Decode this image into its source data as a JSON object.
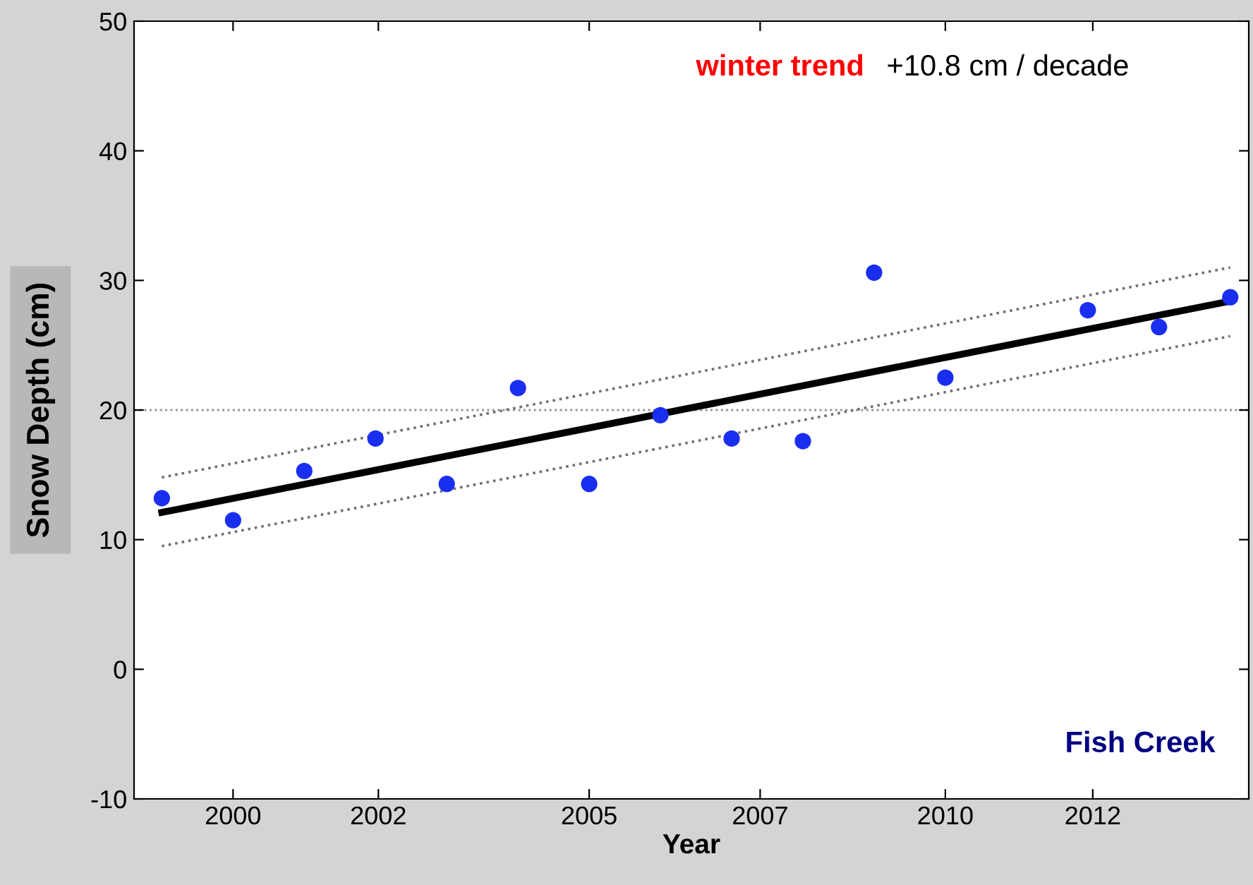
{
  "chart_data": {
    "type": "scatter",
    "xlabel": "Year",
    "ylabel": "Snow Depth (cm)",
    "xlim": [
      1998.61,
      2014.26
    ],
    "ylim": [
      -10,
      50
    ],
    "xticks": [
      {
        "value": 2000,
        "label": "2000"
      },
      {
        "value": 2002.04,
        "label": "2002"
      },
      {
        "value": 2005,
        "label": "2005"
      },
      {
        "value": 2007.4,
        "label": "2007"
      },
      {
        "value": 2010,
        "label": "2010"
      },
      {
        "value": 2012.07,
        "label": "2012"
      }
    ],
    "yticks": [
      -10,
      0,
      10,
      20,
      30,
      40,
      50
    ],
    "grid": false,
    "legend": false,
    "series": [
      {
        "marker": "circle",
        "color": "#1a2ef0",
        "x": [
          1999,
          2000,
          2001,
          2002,
          2003,
          2004,
          2005,
          2006,
          2007,
          2008,
          2009,
          2010,
          2012,
          2013,
          2014
        ],
        "values": [
          13.2,
          11.5,
          15.3,
          17.8,
          14.3,
          21.7,
          14.3,
          19.6,
          17.8,
          17.6,
          30.6,
          22.5,
          27.7,
          26.4,
          28.7
        ]
      },
      {
        "type": "line",
        "line_style": "solid",
        "color": "#000000",
        "x": [
          1999,
          2014
        ],
        "values": [
          12.1,
          28.4
        ]
      },
      {
        "type": "line",
        "line_style": "dotted",
        "color": "#707070",
        "x": [
          1999,
          2014
        ],
        "values": [
          14.8,
          31.0
        ]
      },
      {
        "type": "line",
        "line_style": "dotted",
        "color": "#707070",
        "x": [
          1999,
          2014
        ],
        "values": [
          9.5,
          25.7
        ]
      }
    ],
    "ref_lines": [
      {
        "axis": "y",
        "value": 20,
        "color": "#909090",
        "line_style": "dotted"
      }
    ],
    "annotations": [
      "winter trend",
      "+10.8 cm / decade",
      "Fish Creek"
    ]
  }
}
